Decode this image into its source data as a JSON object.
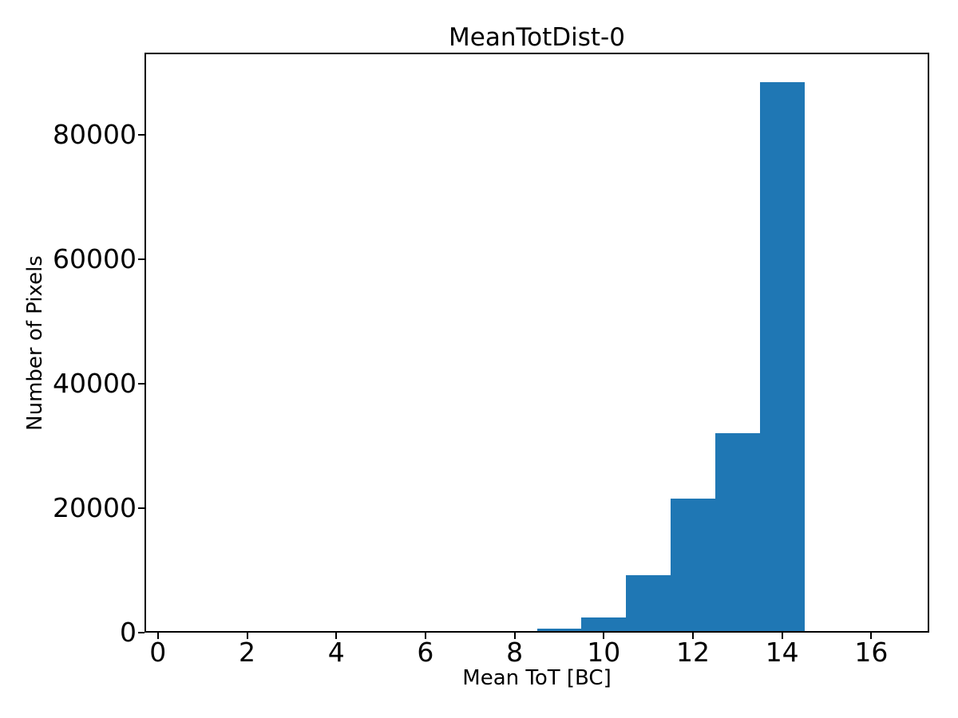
{
  "chart_data": {
    "type": "bar",
    "subtype": "histogram",
    "title": "MeanTotDist-0",
    "xlabel": "Mean ToT [BC]",
    "ylabel": "Number of Pixels",
    "bar_color": "#1f77b4",
    "axis_color": "#000000",
    "background_color": "#ffffff",
    "grid": false,
    "legend": null,
    "xlim": [
      -0.3,
      17.3
    ],
    "ylim": [
      0,
      93200
    ],
    "xticks": [
      0,
      2,
      4,
      6,
      8,
      10,
      12,
      14,
      16
    ],
    "yticks": [
      0,
      20000,
      40000,
      60000,
      80000
    ],
    "bin_edges": [
      8.5,
      9.5,
      10.5,
      11.5,
      12.5,
      13.5,
      14.5
    ],
    "counts": [
      600,
      2400,
      9200,
      21500,
      32000,
      88500
    ]
  }
}
